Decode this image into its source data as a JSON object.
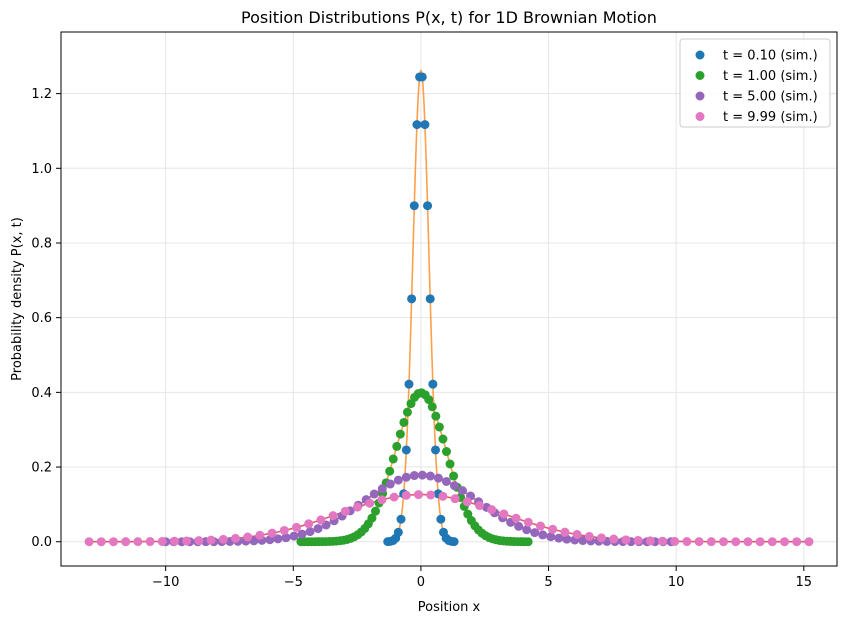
{
  "chart_data": {
    "type": "scatter",
    "title": "Position Distributions P(x, t) for 1D Brownian Motion",
    "xlabel": "Position x",
    "ylabel": "Probability density P(x, t)",
    "xlim": [
      -14.1,
      16.3
    ],
    "ylim": [
      -0.065,
      1.365
    ],
    "xticks": [
      -10,
      -5,
      0,
      5,
      10,
      15
    ],
    "yticks": [
      0.0,
      0.2,
      0.4,
      0.6,
      0.8,
      1.0,
      1.2
    ],
    "xtick_labels": [
      "−10",
      "−5",
      "0",
      "5",
      "10",
      "15"
    ],
    "ytick_labels": [
      "0.0",
      "0.2",
      "0.4",
      "0.6",
      "0.8",
      "1.0",
      "1.2"
    ],
    "grid": true,
    "legend_position": "top-right",
    "diffusion_D": 0.5,
    "series": [
      {
        "name": "t = 0.10 (sim.)",
        "t": 0.1,
        "color": "#1f77b4",
        "x_range": [
          -1.3,
          1.3
        ],
        "points": 26,
        "theory_color": "#ff7f0e"
      },
      {
        "name": "t = 1.00 (sim.)",
        "t": 1.0,
        "color": "#2ca02c",
        "x_range": [
          -4.7,
          4.2
        ],
        "points": 65,
        "theory_color": "#ff7f0e"
      },
      {
        "name": "t = 5.00 (sim.)",
        "t": 5.0,
        "color": "#9467bd",
        "x_range": [
          -10.0,
          9.8
        ],
        "points": 64,
        "theory_color": "#d62728"
      },
      {
        "name": "t = 9.99 (sim.)",
        "t": 9.99,
        "color": "#e377c2",
        "x_range": [
          -13.0,
          15.2
        ],
        "points": 60,
        "theory_color": "#d62728"
      }
    ]
  }
}
